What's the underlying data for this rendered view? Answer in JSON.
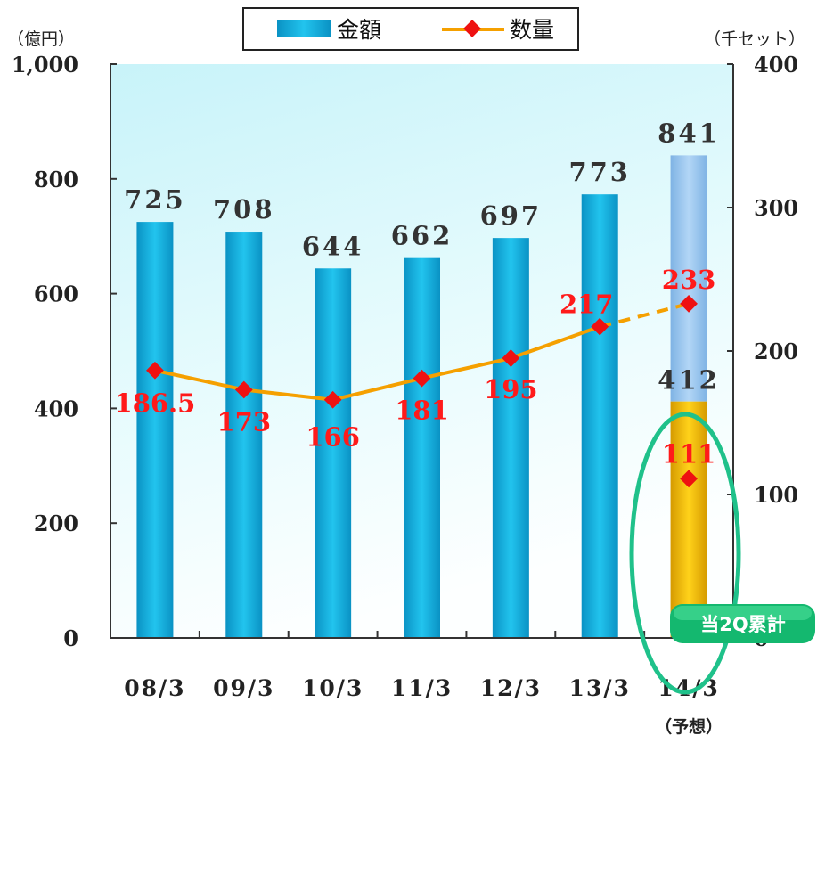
{
  "chart_data": {
    "type": "bar",
    "categories": [
      "08/3",
      "09/3",
      "10/3",
      "11/3",
      "12/3",
      "13/3",
      "14/3"
    ],
    "category_note": "（予想）",
    "series": [
      {
        "name": "金額",
        "type": "bar",
        "axis": "left",
        "values": [
          725,
          708,
          644,
          662,
          697,
          773,
          841
        ],
        "labels": [
          "725",
          "708",
          "644",
          "662",
          "697",
          "773",
          "841"
        ],
        "color": "#19a8d8"
      },
      {
        "name": "数量",
        "type": "line",
        "axis": "right",
        "values": [
          186.5,
          173,
          166,
          181,
          195,
          217,
          233
        ],
        "labels": [
          "186.5",
          "173",
          "166",
          "181",
          "195",
          "217",
          "233"
        ],
        "color": "#f5a000",
        "marker_color": "#ee1111",
        "last_segment_dashed": true
      }
    ],
    "current_half": {
      "badge": "当2Q累計",
      "amount": 412,
      "amount_label": "412",
      "quantity": 111,
      "quantity_label": "111",
      "bar_color": "#e8b400",
      "forecast_bar_color": "#8fbfe8",
      "highlight_color": "#1fc18a"
    },
    "y_left": {
      "unit": "（億円）",
      "min": 0,
      "max": 1000,
      "ticks": [
        0,
        200,
        400,
        600,
        800,
        1000
      ],
      "tick_labels": [
        "0",
        "200",
        "400",
        "600",
        "800",
        "1,000"
      ]
    },
    "y_right": {
      "unit": "（千セット）",
      "min": 0,
      "max": 400,
      "ticks": [
        0,
        100,
        200,
        300,
        400
      ],
      "tick_labels": [
        "0",
        "100",
        "200",
        "300",
        "400"
      ]
    },
    "legend": {
      "position": "top-center",
      "bar_label": "金額",
      "line_label": "数量"
    },
    "grid": false,
    "plot_background": "#d8f6fa"
  }
}
